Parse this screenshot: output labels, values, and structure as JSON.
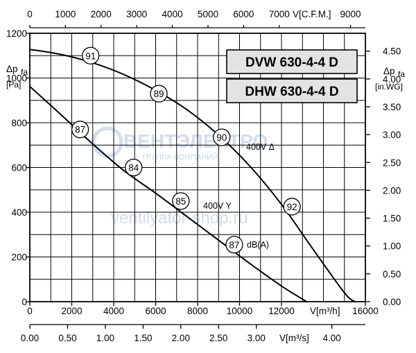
{
  "chart_data": {
    "type": "line",
    "titles": [
      "DVW 630-4-4 D",
      "DHW 630-4-4 D"
    ],
    "y_left": {
      "label_lines": [
        "Δp",
        "fa",
        "[Pa]"
      ],
      "ylim": [
        0,
        1200
      ],
      "ticks": [
        0,
        200,
        400,
        600,
        800,
        1000,
        1200
      ]
    },
    "y_right": {
      "label_lines": [
        "Δp",
        "fa",
        "[in.WG]"
      ],
      "ylim": [
        0,
        4.82
      ],
      "ticks": [
        "0.00",
        "0.50",
        "1.00",
        "1.50",
        "2.00",
        "2.50",
        "3.00",
        "3.50",
        "4.00",
        "4.50"
      ]
    },
    "x_bottom": {
      "label": "V[m³/h]",
      "xlim": [
        0,
        16000
      ],
      "ticks": [
        0,
        2000,
        4000,
        6000,
        8000,
        10000,
        12000,
        16000
      ]
    },
    "x_top": {
      "label": "V[C.F.M.]",
      "xlim": [
        0,
        9417
      ],
      "ticks": [
        0,
        1000,
        2000,
        3000,
        4000,
        5000,
        6000,
        7000,
        9000
      ]
    },
    "x_extra": {
      "label": "V[m³/s]",
      "xlim": [
        0,
        4.444
      ],
      "ticks": [
        "0.00",
        "0.50",
        "1.00",
        "1.50",
        "2.00",
        "2.50",
        "3.00",
        "4.00"
      ]
    },
    "series": [
      {
        "name": "400V Δ",
        "x": [
          0,
          1500,
          3000,
          4500,
          6000,
          7500,
          9000,
          10500,
          12000,
          13500,
          15000,
          15500
        ],
        "y": [
          1128,
          1105,
          1068,
          1015,
          945,
          858,
          745,
          605,
          435,
          235,
          40,
          0
        ]
      },
      {
        "name": "400V Y",
        "x": [
          0,
          1500,
          3000,
          4500,
          6000,
          7500,
          9000,
          10500,
          12000,
          13200
        ],
        "y": [
          962,
          835,
          705,
          585,
          485,
          380,
          275,
          170,
          70,
          0
        ]
      }
    ],
    "noise_markers": [
      {
        "value": "91",
        "x": 2900,
        "y": 1100
      },
      {
        "value": "89",
        "x": 6150,
        "y": 930
      },
      {
        "value": "90",
        "x": 9150,
        "y": 735
      },
      {
        "value": "92",
        "x": 12500,
        "y": 425
      },
      {
        "value": "87",
        "x": 2400,
        "y": 770
      },
      {
        "value": "84",
        "x": 4950,
        "y": 600
      },
      {
        "value": "85",
        "x": 7200,
        "y": 450
      },
      {
        "value": "87",
        "x": 9750,
        "y": 255
      }
    ],
    "noise_unit": "dB(A)",
    "grid": true,
    "watermark": [
      "ВЕНТЭЛЕКТРО",
      "ГРУППА КОМПАНИЙ",
      "ventilyator-shop.ru"
    ]
  }
}
